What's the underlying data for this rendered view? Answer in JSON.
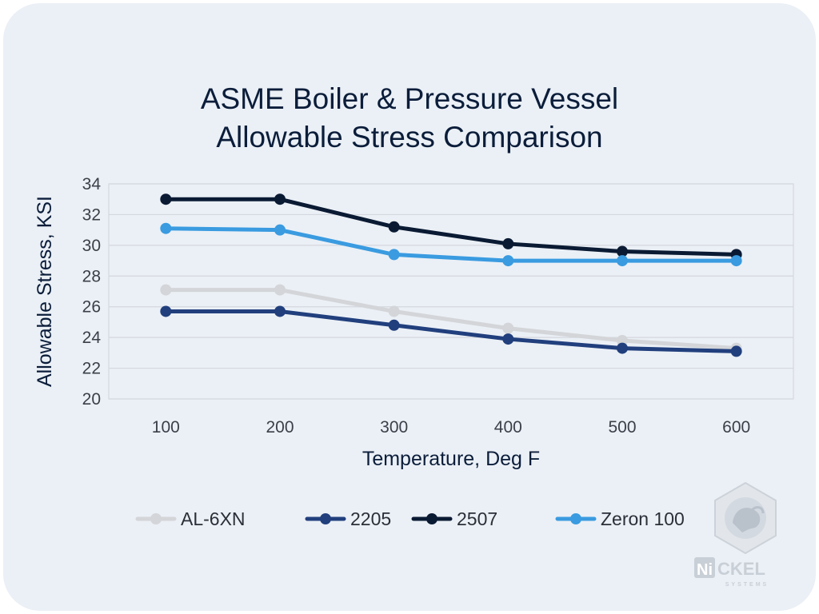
{
  "chart_data": {
    "type": "line",
    "title_lines": [
      "ASME Boiler & Pressure Vessel",
      "Allowable Stress Comparison"
    ],
    "xlabel": "Temperature, Deg F",
    "ylabel": "Allowable Stress, KSI",
    "categories": [
      "100",
      "200",
      "300",
      "400",
      "500",
      "600"
    ],
    "ylim": [
      20,
      34
    ],
    "yticks": [
      "20",
      "22",
      "24",
      "26",
      "28",
      "30",
      "32",
      "34"
    ],
    "grid": true,
    "legend_position": "bottom",
    "series": [
      {
        "name": "AL-6XN",
        "color": "#d3d5d8",
        "values": [
          27.1,
          27.1,
          25.7,
          24.6,
          23.8,
          23.3
        ]
      },
      {
        "name": "2205",
        "color": "#213f7d",
        "values": [
          25.7,
          25.7,
          24.8,
          23.9,
          23.3,
          23.1
        ]
      },
      {
        "name": "2507",
        "color": "#0a1a33",
        "values": [
          33.0,
          33.0,
          31.2,
          30.1,
          29.6,
          29.4
        ]
      },
      {
        "name": "Zeron 100",
        "color": "#3a9be0",
        "values": [
          31.1,
          31.0,
          29.4,
          29.0,
          29.0,
          29.0
        ]
      }
    ]
  },
  "logo": {
    "icon": "bison-hexagon-icon",
    "brand": "NiCKEL",
    "brand_ni": "Ni",
    "brand_rest": "CKEL",
    "tagline": "SYSTEMS"
  }
}
